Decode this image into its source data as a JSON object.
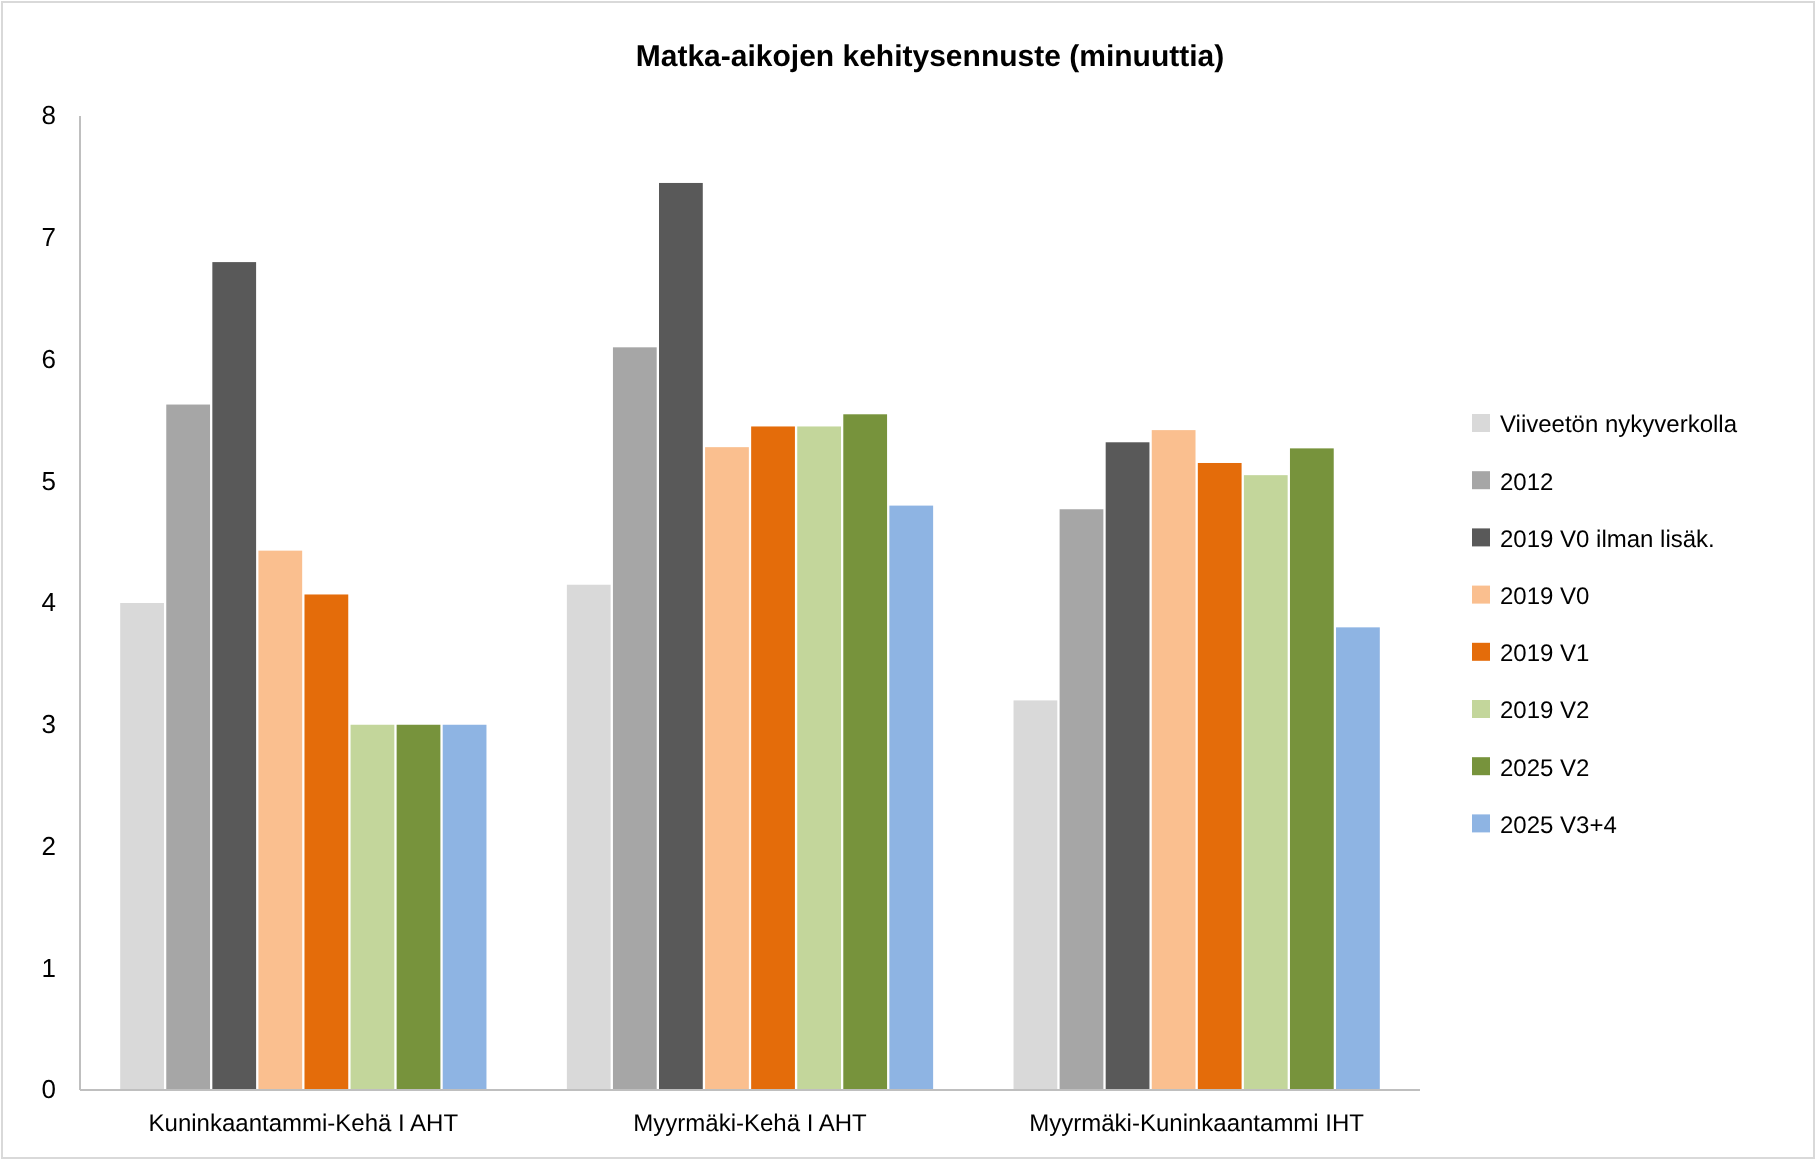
{
  "chart_data": {
    "type": "bar",
    "title": "Matka-aikojen kehitysennuste (minuuttia)",
    "categories": [
      "Kuninkaantammi-Kehä I AHT",
      "Myyrmäki-Kehä I AHT",
      "Myyrmäki-Kuninkaantammi IHT"
    ],
    "series": [
      {
        "name": "Viiveetön nykyverkolla",
        "color": "#d9d9d9",
        "values": [
          4.0,
          4.15,
          3.2
        ]
      },
      {
        "name": "2012",
        "color": "#a6a6a6",
        "values": [
          5.63,
          6.1,
          4.77
        ]
      },
      {
        "name": "2019 V0 ilman lisäk.",
        "color": "#595959",
        "values": [
          6.8,
          7.45,
          5.32
        ]
      },
      {
        "name": "2019 V0",
        "color": "#fabf8f",
        "values": [
          4.43,
          5.28,
          5.42
        ]
      },
      {
        "name": "2019 V1",
        "color": "#e46c0a",
        "values": [
          4.07,
          5.45,
          5.15
        ]
      },
      {
        "name": "2019 V2",
        "color": "#c3d69b",
        "values": [
          3.0,
          5.45,
          5.05
        ]
      },
      {
        "name": "2025 V2",
        "color": "#77933c",
        "values": [
          3.0,
          5.55,
          5.27
        ]
      },
      {
        "name": "2025 V3+4",
        "color": "#8eb4e3",
        "values": [
          3.0,
          4.8,
          3.8
        ]
      }
    ],
    "ylim": [
      0,
      8
    ],
    "yticks": [
      0,
      1,
      2,
      3,
      4,
      5,
      6,
      7,
      8
    ],
    "grid": false,
    "legend": "right"
  }
}
